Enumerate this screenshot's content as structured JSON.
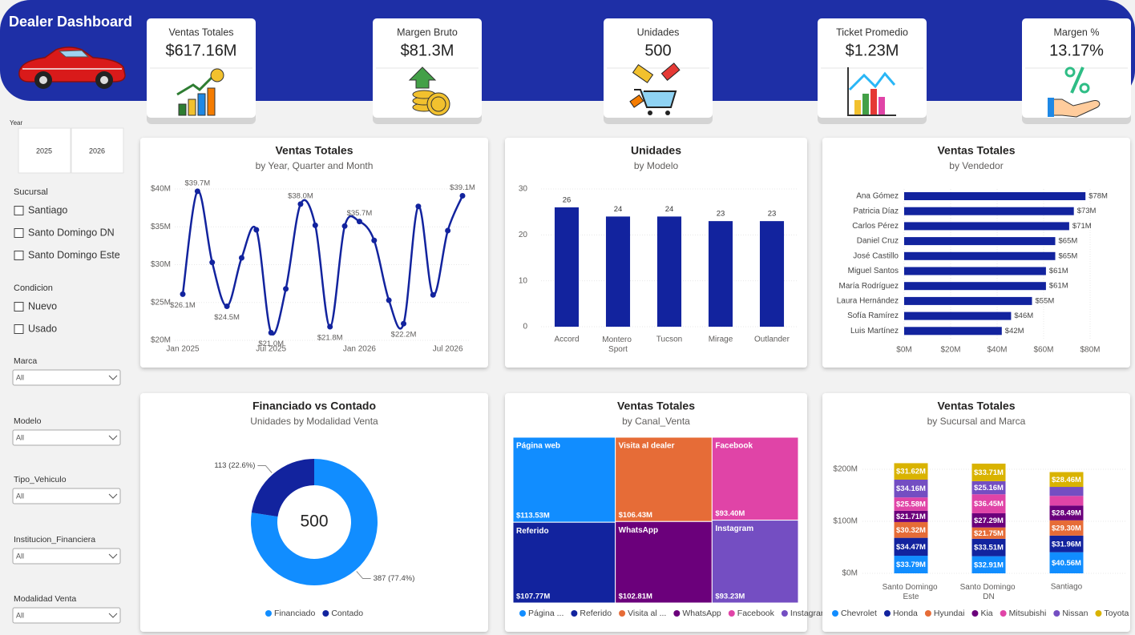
{
  "header": {
    "title": "Dealer Dashboard"
  },
  "kpis": [
    {
      "label": "Ventas Totales",
      "value": "$617.16M"
    },
    {
      "label": "Margen Bruto",
      "value": "$81.3M"
    },
    {
      "label": "Unidades",
      "value": "500"
    },
    {
      "label": "Ticket Promedio",
      "value": "$1.23M"
    },
    {
      "label": "Margen %",
      "value": "13.17%"
    }
  ],
  "slicers": {
    "year": {
      "label": "Year",
      "options": [
        "2025",
        "2026"
      ]
    },
    "checklists": [
      {
        "label": "Sucursal",
        "options": [
          "Santiago",
          "Santo Domingo DN",
          "Santo Domingo Este"
        ]
      },
      {
        "label": "Condicion",
        "options": [
          "Nuevo",
          "Usado"
        ]
      }
    ],
    "dropdowns": [
      {
        "label": "Marca",
        "value": "All"
      },
      {
        "label": "Modelo",
        "value": "All"
      },
      {
        "label": "Tipo_Vehiculo",
        "value": "All"
      },
      {
        "label": "Institucion_Financiera",
        "value": "All"
      },
      {
        "label": "Modalidad Venta",
        "value": "All"
      }
    ]
  },
  "chart_data": [
    {
      "type": "line",
      "title": "Ventas Totales",
      "subtitle": "by Year, Quarter and Month",
      "categories": [
        "Jan 2025",
        null,
        null,
        null,
        null,
        null,
        "Jul 2025",
        null,
        null,
        null,
        null,
        null,
        "Jan 2026",
        null,
        null,
        null,
        null,
        null,
        "Jul 2026",
        null
      ],
      "values": [
        26.1,
        39.7,
        30.3,
        24.5,
        30.9,
        34.6,
        21.0,
        26.8,
        38.0,
        35.2,
        21.8,
        35.1,
        35.7,
        33.2,
        25.3,
        22.2,
        37.7,
        26.0,
        34.5,
        39.1
      ],
      "value_labels": [
        "$26.1M",
        "$39.7M",
        null,
        "$24.5M",
        null,
        null,
        "$21.0M",
        null,
        "$38.0M",
        null,
        "$21.8M",
        null,
        "$35.7M",
        null,
        null,
        "$22.2M",
        null,
        null,
        null,
        "$39.1M"
      ],
      "color": "#12239E",
      "ylim": [
        20,
        40
      ],
      "yticks": [
        {
          "value": 20,
          "label": "$20M"
        },
        {
          "value": 25,
          "label": "$25M"
        },
        {
          "value": 30,
          "label": "$30M"
        },
        {
          "value": 35,
          "label": "$35M"
        },
        {
          "value": 40,
          "label": "$40M"
        }
      ],
      "grid": true
    },
    {
      "type": "bar",
      "title": "Unidades",
      "subtitle": "by Modelo",
      "categories": [
        "Accord",
        "Montero Sport",
        "Tucson",
        "Mirage",
        "Outlander"
      ],
      "values": [
        26,
        24,
        24,
        23,
        23
      ],
      "color": "#12239E",
      "ylim": [
        0,
        30
      ],
      "yticks": [
        0,
        10,
        20,
        30
      ],
      "grid": true
    },
    {
      "type": "hbar",
      "title": "Ventas Totales",
      "subtitle": "by Vendedor",
      "categories": [
        "Ana Gómez",
        "Patricia Díaz",
        "Carlos Pérez",
        "Daniel Cruz",
        "José Castillo",
        "Miguel Santos",
        "María Rodríguez",
        "Laura Hernández",
        "Sofía Ramírez",
        "Luis Martínez"
      ],
      "values": [
        78,
        73,
        71,
        65,
        65,
        61,
        61,
        55,
        46,
        42
      ],
      "value_labels": [
        "$78M",
        "$73M",
        "$71M",
        "$65M",
        "$65M",
        "$61M",
        "$61M",
        "$55M",
        "$46M",
        "$42M"
      ],
      "color": "#12239E",
      "xlim": [
        0,
        80
      ],
      "xticks": [
        {
          "value": 0,
          "label": "$0M"
        },
        {
          "value": 20,
          "label": "$20M"
        },
        {
          "value": 40,
          "label": "$40M"
        },
        {
          "value": 60,
          "label": "$60M"
        },
        {
          "value": 80,
          "label": "$80M"
        }
      ],
      "grid": true
    },
    {
      "type": "donut",
      "title": "Financiado vs Contado",
      "subtitle": "Unidades by Modalidad Venta",
      "categories": [
        "Financiado",
        "Contado"
      ],
      "values": [
        387,
        113
      ],
      "value_labels": [
        "387 (77.4%)",
        "113 (22.6%)"
      ],
      "colors": [
        "#118DFF",
        "#12239E"
      ],
      "center_value": 500
    },
    {
      "type": "treemap",
      "title": "Ventas Totales",
      "subtitle": "by Canal_Venta",
      "categories": [
        "Página web",
        "Referido",
        "Visita al dealer",
        "WhatsApp",
        "Facebook",
        "Instagram"
      ],
      "legend_labels": [
        "Página ...",
        "Referido",
        "Visita al ...",
        "WhatsApp",
        "Facebook",
        "Instagram"
      ],
      "values": [
        113.53,
        107.77,
        106.43,
        102.81,
        93.4,
        93.23
      ],
      "value_labels": [
        "$113.53M",
        "$107.77M",
        "$106.43M",
        "$102.81M",
        "$93.40M",
        "$93.23M"
      ],
      "colors": [
        "#118DFF",
        "#12239E",
        "#E66C37",
        "#6B007B",
        "#E044A7",
        "#744EC2"
      ]
    },
    {
      "type": "stacked_bar",
      "title": "Ventas Totales",
      "subtitle": "by Sucursal and Marca",
      "categories": [
        "Santo Domingo Este",
        "Santo Domingo DN",
        "Santiago"
      ],
      "series": [
        {
          "name": "Chevrolet",
          "color": "#118DFF",
          "values": [
            33.79,
            32.91,
            40.56
          ],
          "value_labels": [
            "$33.79M",
            "$32.91M",
            "$40.56M"
          ]
        },
        {
          "name": "Honda",
          "color": "#12239E",
          "values": [
            34.47,
            33.51,
            31.96
          ],
          "value_labels": [
            "$34.47M",
            "$33.51M",
            "$31.96M"
          ]
        },
        {
          "name": "Hyundai",
          "color": "#E66C37",
          "values": [
            30.32,
            21.75,
            29.3
          ],
          "value_labels": [
            "$30.32M",
            "$21.75M",
            "$29.30M"
          ]
        },
        {
          "name": "Kia",
          "color": "#6B007B",
          "values": [
            21.71,
            27.29,
            28.49
          ],
          "value_labels": [
            "$21.71M",
            "$27.29M",
            "$28.49M"
          ]
        },
        {
          "name": "Mitsubishi",
          "color": "#E044A7",
          "values": [
            25.58,
            36.45,
            18.5
          ],
          "value_labels": [
            "$25.58M",
            "$36.45M",
            null
          ]
        },
        {
          "name": "Nissan",
          "color": "#744EC2",
          "values": [
            34.16,
            25.16,
            17.3
          ],
          "value_labels": [
            "$34.16M",
            "$25.16M",
            null
          ]
        },
        {
          "name": "Toyota",
          "color": "#D9B300",
          "values": [
            31.62,
            33.71,
            28.46
          ],
          "value_labels": [
            "$31.62M",
            "$33.71M",
            "$28.46M"
          ]
        }
      ],
      "ylim": [
        0,
        230
      ],
      "yticks": [
        {
          "value": 0,
          "label": "$0M"
        },
        {
          "value": 100,
          "label": "$100M"
        },
        {
          "value": 200,
          "label": "$200M"
        }
      ],
      "grid": true
    }
  ]
}
